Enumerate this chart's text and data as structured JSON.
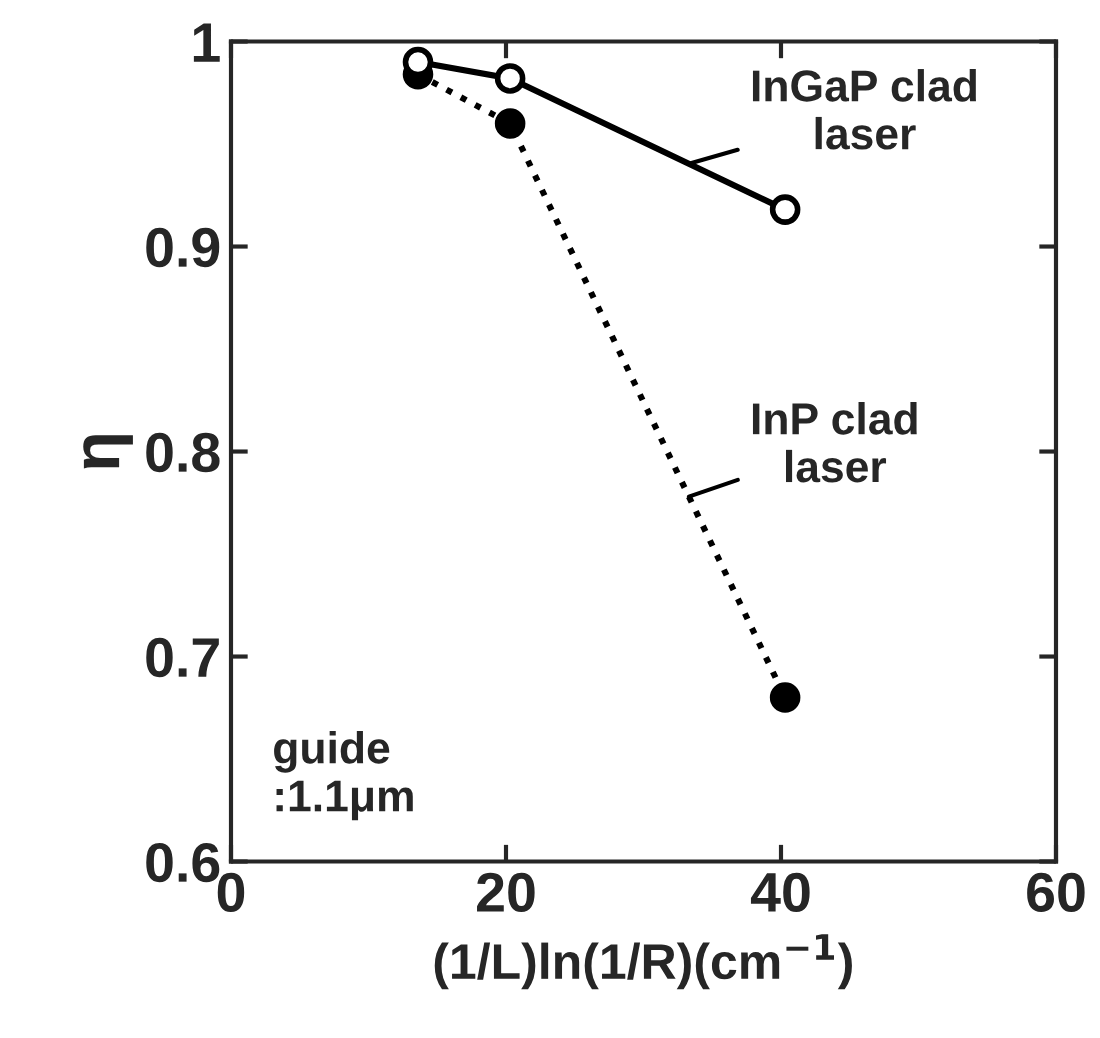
{
  "chart_data": {
    "type": "line",
    "xlabel": "(1/L)ln(1/R)(cm$^{−1}$)",
    "ylabel": "η",
    "xlim": [
      0,
      60
    ],
    "xticks": [
      0,
      20,
      40,
      60
    ],
    "ylim": [
      0.6,
      1.0
    ],
    "yticks": [
      0.6,
      0.7,
      0.8,
      0.9,
      1
    ],
    "grid": false,
    "legend": false,
    "series": [
      {
        "name": "InGaP clad\nlaser",
        "color": "#000000",
        "x": [
          13.6,
          20.3,
          40.3
        ],
        "values": [
          0.99,
          0.982,
          0.918
        ],
        "marker": "circle",
        "line_style": "solid"
      },
      {
        "name": "InP clad\nlaser",
        "color": "#000000",
        "x": [
          13.6,
          20.3,
          40.3
        ],
        "values": [
          0.984,
          0.96,
          0.68
        ],
        "marker": "circle",
        "line_style": "dotted"
      }
    ],
    "annotations": [
      "guide\n:1.1μm"
    ]
  }
}
